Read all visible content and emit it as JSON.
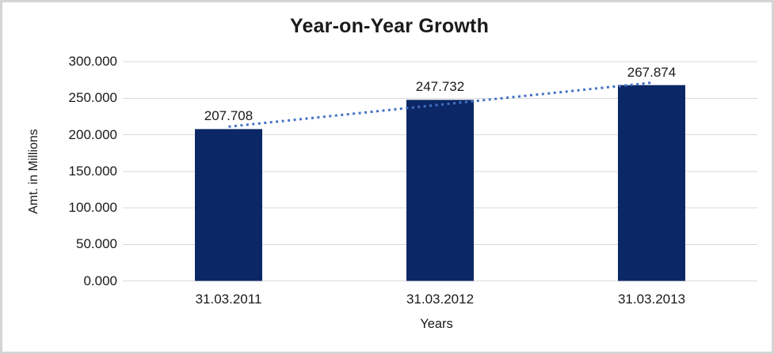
{
  "window": {
    "background": "#ffffff",
    "border_color": "#d5d5d5"
  },
  "chart_data": {
    "type": "bar",
    "title": "Year-on-Year Growth",
    "xlabel": "Years",
    "ylabel": "Amt. in Millions",
    "categories": [
      "31.03.2011",
      "31.03.2012",
      "31.03.2013"
    ],
    "values": [
      207.708,
      247.732,
      267.874
    ],
    "value_labels": [
      "207.708",
      "247.732",
      "267.874"
    ],
    "yticks": [
      0,
      50,
      100,
      150,
      200,
      250,
      300
    ],
    "ytick_labels": [
      "0.000",
      "50.000",
      "100.000",
      "150.000",
      "200.000",
      "250.000",
      "300.000"
    ],
    "ylim": [
      0,
      300
    ],
    "grid": true,
    "legend": false,
    "trendline": {
      "type": "linear",
      "style": "dotted"
    },
    "colors": {
      "bar": "#0b2765",
      "trendline": "#4472c4",
      "gridline": "#d9d9d9",
      "text": "#1a1a1a"
    }
  }
}
